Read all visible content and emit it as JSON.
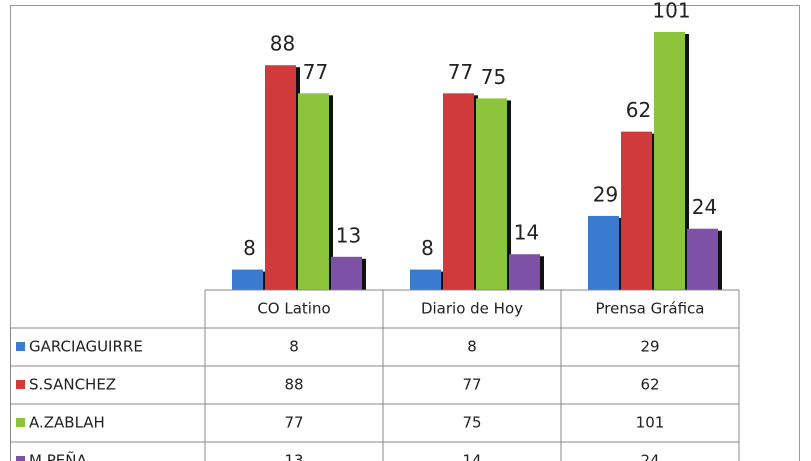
{
  "chart_data": {
    "type": "bar",
    "categories": [
      "CO Latino",
      "Diario de Hoy",
      "Prensa Gráfica"
    ],
    "series": [
      {
        "name": "GARCIAGUIRRE",
        "color": "#3a7bd0",
        "values": [
          8,
          8,
          29
        ]
      },
      {
        "name": "S.SANCHEZ",
        "color": "#d03a3a",
        "values": [
          88,
          77,
          62
        ]
      },
      {
        "name": "A.ZABLAH",
        "color": "#8cc43c",
        "values": [
          77,
          75,
          101
        ]
      },
      {
        "name": "M.PEÑA",
        "color": "#7d52a6",
        "values": [
          13,
          14,
          24
        ]
      }
    ]
  }
}
